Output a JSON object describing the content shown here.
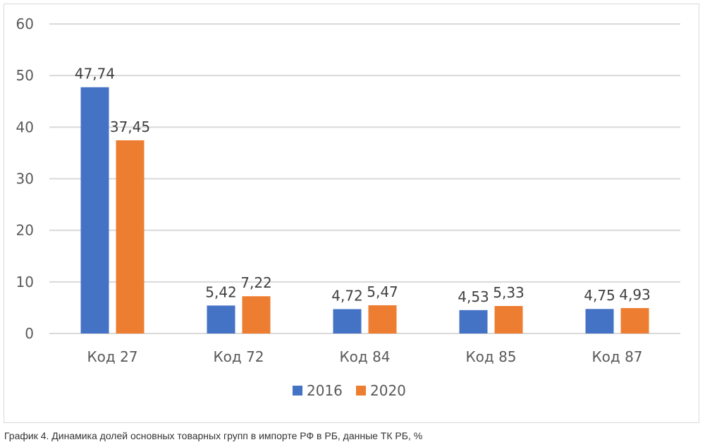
{
  "chart_data": {
    "type": "bar",
    "categories": [
      "Код 27",
      "Код 72",
      "Код 84",
      "Код 85",
      "Код 87"
    ],
    "series": [
      {
        "name": "2016",
        "color": "#4472C4",
        "values": [
          47.74,
          5.42,
          4.72,
          4.53,
          4.75
        ],
        "labels": [
          "47,74",
          "5,42",
          "4,72",
          "4,53",
          "4,75"
        ]
      },
      {
        "name": "2020",
        "color": "#ED7D31",
        "values": [
          37.45,
          7.22,
          5.47,
          5.33,
          4.93
        ],
        "labels": [
          "37,45",
          "7,22",
          "5,47",
          "5,33",
          "4,93"
        ]
      }
    ],
    "ylim": [
      0,
      60
    ],
    "yticks": [
      0,
      10,
      20,
      30,
      40,
      50,
      60
    ],
    "grid": true,
    "legend": "bottom-center"
  },
  "caption": "График 4. Динамика долей основных товарных групп в импорте РФ в РБ, данные ТК РБ, %"
}
